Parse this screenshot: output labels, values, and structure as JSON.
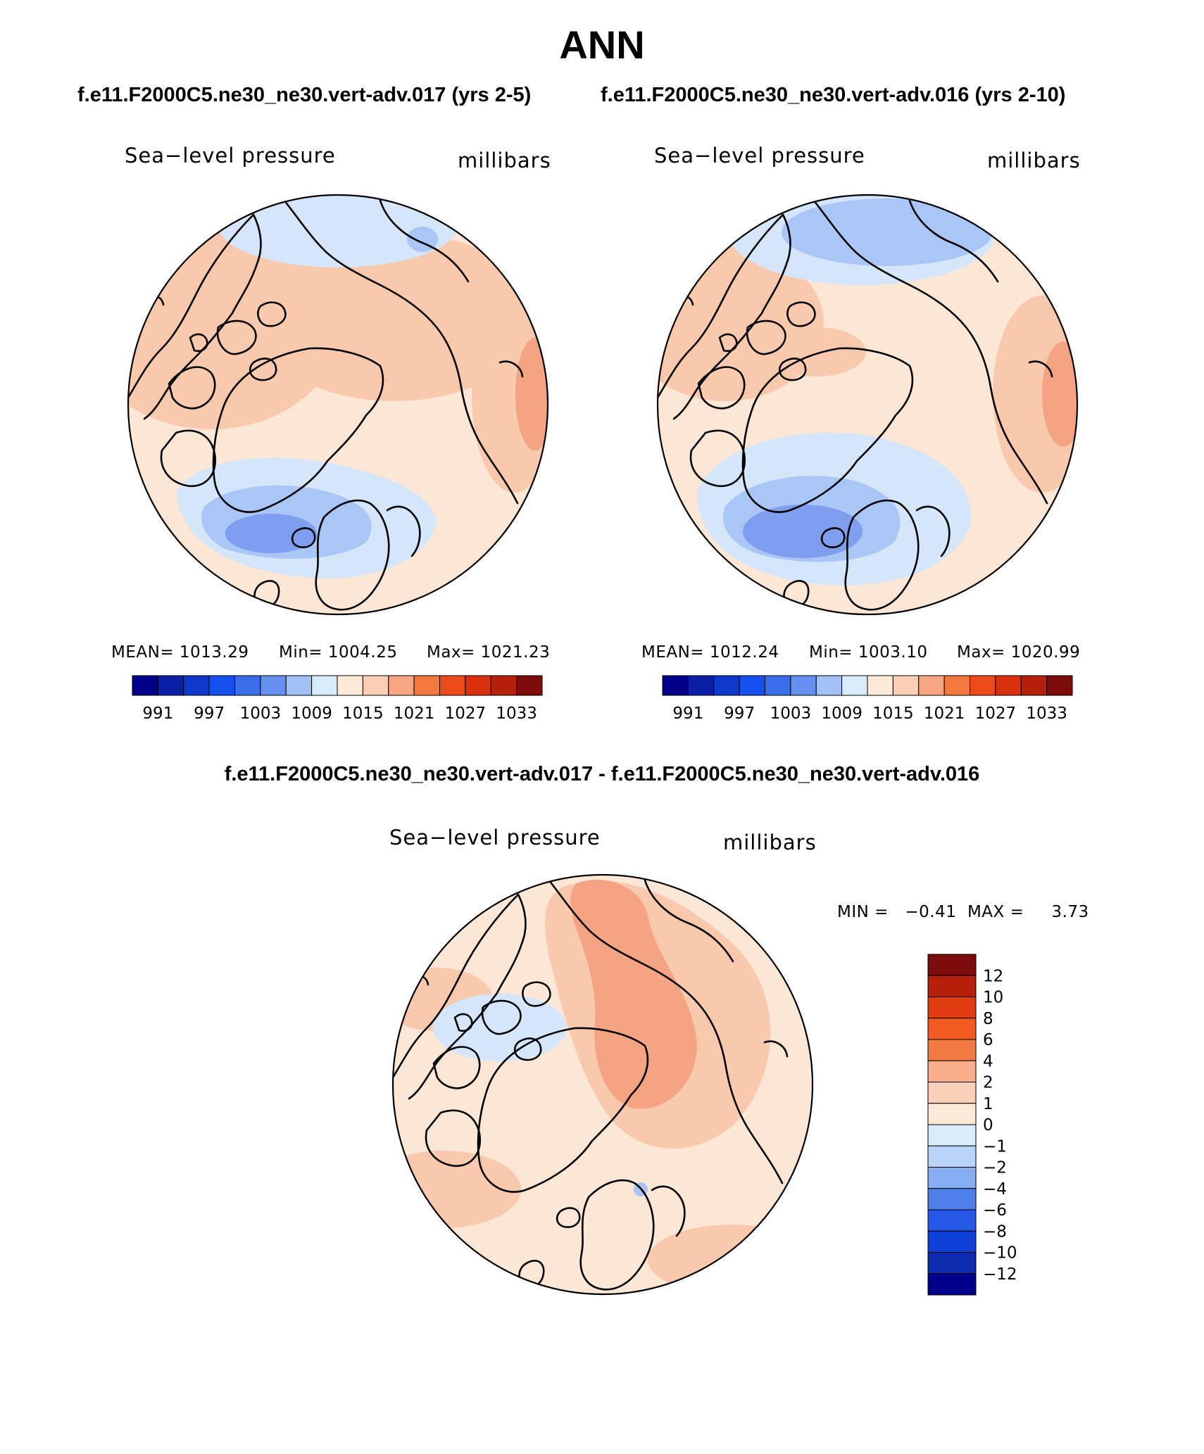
{
  "figure": {
    "title": "ANN",
    "case_left": "f.e11.F2000C5.ne30_ne30.vert-adv.017 (yrs 2-5)",
    "case_right": "f.e11.F2000C5.ne30_ne30.vert-adv.016 (yrs 2-10)",
    "diff_title": "f.e11.F2000C5.ne30_ne30.vert-adv.017 - f.e11.F2000C5.ne30_ne30.vert-adv.016"
  },
  "panels": {
    "left": {
      "variable": "Sea−level pressure",
      "units": "millibars",
      "stats": {
        "mean": "MEAN=  1013.29",
        "min": "Min=  1004.25",
        "max": "Max=  1021.23"
      }
    },
    "right": {
      "variable": "Sea−level pressure",
      "units": "millibars",
      "stats": {
        "mean": "MEAN=  1012.24",
        "min": "Min=  1003.10",
        "max": "Max=  1020.99"
      }
    },
    "diff": {
      "variable": "Sea−level pressure",
      "units": "millibars",
      "minmax": "MIN =   −0.41  MAX =     3.73"
    }
  },
  "colorbars": {
    "abs_colors": [
      "#00008b",
      "#0a1ea6",
      "#0e38cc",
      "#1450ee",
      "#3a6ee8",
      "#6690f0",
      "#a2c0f6",
      "#d8ebfb",
      "#fde9d8",
      "#fbcfb6",
      "#f7a582",
      "#f2783f",
      "#ec4a18",
      "#d9300e",
      "#b5200a",
      "#7e0b0b"
    ],
    "abs_labels": [
      "991",
      "997",
      "1003",
      "1009",
      "1015",
      "1021",
      "1027",
      "1033"
    ],
    "diff_colors": [
      "#7e0b0b",
      "#b5200a",
      "#e03c10",
      "#f25a22",
      "#f47a44",
      "#f9ad8a",
      "#fbd0b8",
      "#fde9d8",
      "#d8ebfb",
      "#b9d4f8",
      "#88aef2",
      "#4f7fe8",
      "#2657e6",
      "#0e3fd6",
      "#0e2aae",
      "#00008b"
    ],
    "diff_labels": [
      "12",
      "10",
      "8",
      "6",
      "4",
      "2",
      "1",
      "0",
      "−1",
      "−2",
      "−4",
      "−6",
      "−8",
      "−10",
      "−12"
    ]
  },
  "map_colors": {
    "land_outline": "#000000",
    "deep_low": "#7f9ef0",
    "low": "#a9c6f6",
    "slight_low": "#d5e6fb",
    "neutral": "#fce6d5",
    "slight_high": "#f9c9ae",
    "high": "#f4a383"
  }
}
